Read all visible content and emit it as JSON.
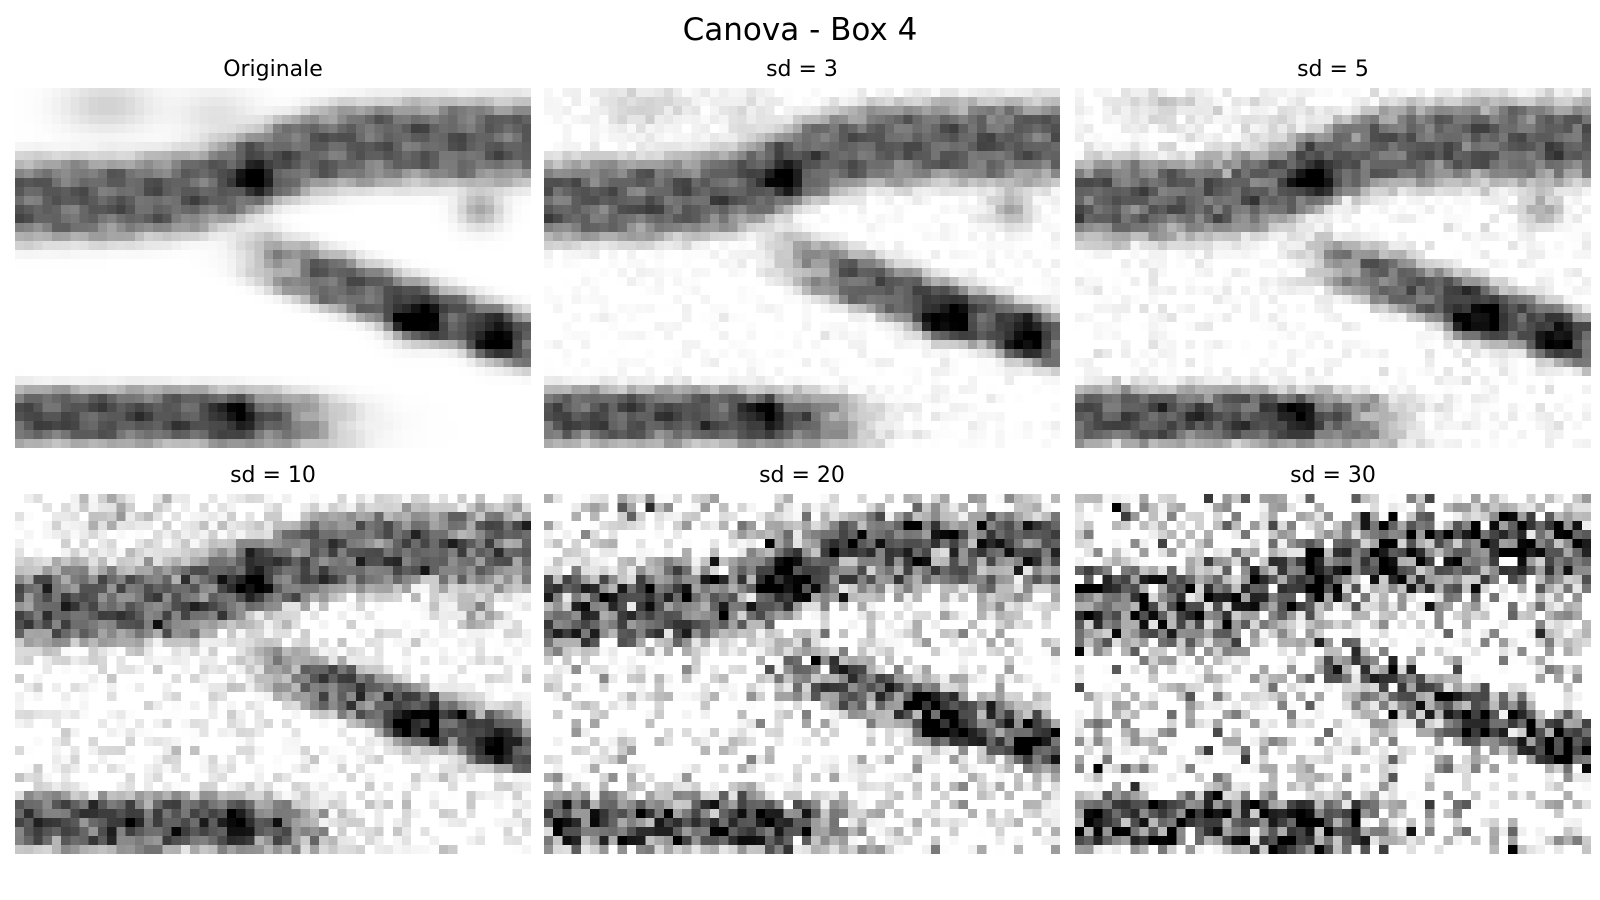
{
  "figure": {
    "title": "Canova - Box 4"
  },
  "panels": [
    {
      "title": "Originale",
      "noise_sd": 0
    },
    {
      "title": "sd = 3",
      "noise_sd": 3
    },
    {
      "title": "sd = 5",
      "noise_sd": 5
    },
    {
      "title": "sd = 10",
      "noise_sd": 10
    },
    {
      "title": "sd = 20",
      "noise_sd": 20
    },
    {
      "title": "sd = 30",
      "noise_sd": 30
    }
  ],
  "colormap": "gray"
}
